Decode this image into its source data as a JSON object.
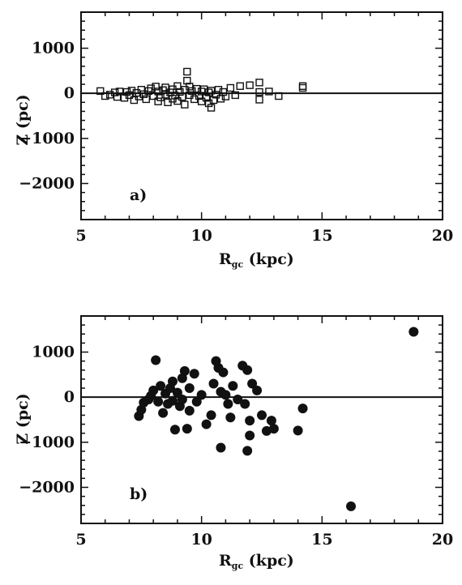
{
  "chart_data": [
    {
      "type": "scatter",
      "panel_label": "a)",
      "xlabel": "R_gc (kpc)",
      "ylabel": "Z (pc)",
      "xlim": [
        5,
        20
      ],
      "ylim": [
        -2800,
        1800
      ],
      "xticks": [
        "5",
        "10",
        "15",
        "20"
      ],
      "yticks": [
        "1000",
        "0",
        "−1000",
        "−2000"
      ],
      "zero_line": true,
      "marker": "open-square",
      "points": [
        [
          5.8,
          50
        ],
        [
          6.0,
          -60
        ],
        [
          6.2,
          -30
        ],
        [
          6.4,
          20
        ],
        [
          6.5,
          -80
        ],
        [
          6.6,
          40
        ],
        [
          6.8,
          -100
        ],
        [
          6.9,
          30
        ],
        [
          7.0,
          -40
        ],
        [
          7.1,
          60
        ],
        [
          7.2,
          -150
        ],
        [
          7.3,
          10
        ],
        [
          7.4,
          -70
        ],
        [
          7.5,
          80
        ],
        [
          7.6,
          -20
        ],
        [
          7.7,
          -130
        ],
        [
          7.8,
          50
        ],
        [
          7.9,
          110
        ],
        [
          8.0,
          -60
        ],
        [
          8.1,
          150
        ],
        [
          8.2,
          -180
        ],
        [
          8.2,
          40
        ],
        [
          8.3,
          -90
        ],
        [
          8.4,
          70
        ],
        [
          8.5,
          -30
        ],
        [
          8.5,
          130
        ],
        [
          8.6,
          -200
        ],
        [
          8.7,
          20
        ],
        [
          8.8,
          -120
        ],
        [
          8.8,
          90
        ],
        [
          8.9,
          -50
        ],
        [
          9.0,
          160
        ],
        [
          9.0,
          -170
        ],
        [
          9.1,
          30
        ],
        [
          9.2,
          -80
        ],
        [
          9.3,
          -250
        ],
        [
          9.3,
          80
        ],
        [
          9.4,
          480
        ],
        [
          9.4,
          280
        ],
        [
          9.5,
          -40
        ],
        [
          9.5,
          150
        ],
        [
          9.6,
          50
        ],
        [
          9.7,
          -130
        ],
        [
          9.8,
          100
        ],
        [
          9.9,
          -60
        ],
        [
          10.0,
          -180
        ],
        [
          10.0,
          40
        ],
        [
          10.1,
          90
        ],
        [
          10.2,
          -100
        ],
        [
          10.3,
          20
        ],
        [
          10.3,
          -220
        ],
        [
          10.4,
          -320
        ],
        [
          10.4,
          60
        ],
        [
          10.5,
          -150
        ],
        [
          10.6,
          -30
        ],
        [
          10.7,
          80
        ],
        [
          10.8,
          -120
        ],
        [
          10.9,
          30
        ],
        [
          11.0,
          -70
        ],
        [
          11.2,
          120
        ],
        [
          11.4,
          -40
        ],
        [
          11.6,
          160
        ],
        [
          12.0,
          180
        ],
        [
          12.4,
          240
        ],
        [
          12.4,
          30
        ],
        [
          12.4,
          -140
        ],
        [
          12.8,
          40
        ],
        [
          13.2,
          -60
        ],
        [
          14.2,
          160
        ],
        [
          14.2,
          120
        ]
      ]
    },
    {
      "type": "scatter",
      "panel_label": "b)",
      "xlabel": "R_gc (kpc)",
      "ylabel": "Z (pc)",
      "xlim": [
        5,
        20
      ],
      "ylim": [
        -2800,
        1800
      ],
      "xticks": [
        "5",
        "10",
        "15",
        "20"
      ],
      "yticks": [
        "1000",
        "0",
        "−1000",
        "−2000"
      ],
      "zero_line": true,
      "marker": "filled-circle",
      "points": [
        [
          7.4,
          -420
        ],
        [
          7.5,
          -280
        ],
        [
          7.6,
          -120
        ],
        [
          7.8,
          -50
        ],
        [
          7.9,
          30
        ],
        [
          8.0,
          150
        ],
        [
          8.1,
          820
        ],
        [
          8.2,
          -100
        ],
        [
          8.3,
          250
        ],
        [
          8.4,
          -350
        ],
        [
          8.5,
          80
        ],
        [
          8.6,
          -150
        ],
        [
          8.7,
          200
        ],
        [
          8.8,
          -80
        ],
        [
          8.8,
          350
        ],
        [
          8.9,
          -720
        ],
        [
          9.0,
          100
        ],
        [
          9.1,
          -200
        ],
        [
          9.2,
          420
        ],
        [
          9.2,
          -50
        ],
        [
          9.3,
          580
        ],
        [
          9.4,
          -700
        ],
        [
          9.5,
          200
        ],
        [
          9.5,
          -300
        ],
        [
          9.7,
          520
        ],
        [
          9.8,
          -100
        ],
        [
          10.0,
          50
        ],
        [
          10.2,
          -600
        ],
        [
          10.4,
          -400
        ],
        [
          10.5,
          300
        ],
        [
          10.6,
          800
        ],
        [
          10.7,
          650
        ],
        [
          10.8,
          -1120
        ],
        [
          10.8,
          120
        ],
        [
          10.9,
          550
        ],
        [
          11.0,
          50
        ],
        [
          11.1,
          -150
        ],
        [
          11.2,
          -450
        ],
        [
          11.3,
          250
        ],
        [
          11.5,
          -50
        ],
        [
          11.7,
          700
        ],
        [
          11.8,
          -150
        ],
        [
          11.9,
          -1190
        ],
        [
          11.9,
          600
        ],
        [
          12.0,
          -520
        ],
        [
          12.0,
          -850
        ],
        [
          12.1,
          300
        ],
        [
          12.3,
          150
        ],
        [
          12.5,
          -400
        ],
        [
          12.7,
          -750
        ],
        [
          12.9,
          -520
        ],
        [
          13.0,
          -700
        ],
        [
          14.0,
          -740
        ],
        [
          14.2,
          -250
        ],
        [
          16.2,
          -2420
        ],
        [
          18.8,
          1450
        ]
      ]
    }
  ]
}
